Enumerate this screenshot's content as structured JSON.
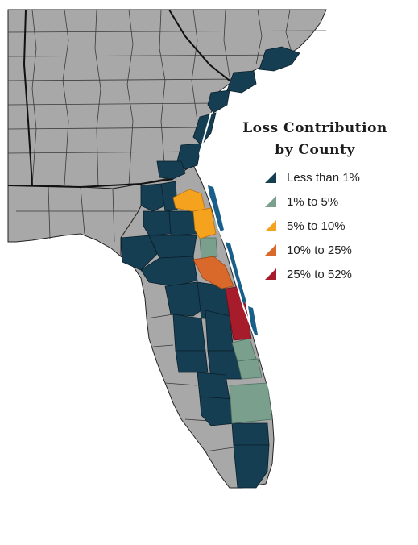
{
  "legend": {
    "title_line1": "Loss Contribution",
    "title_line2": "by County",
    "items": [
      {
        "label": "Less than 1%",
        "color": "#163e52"
      },
      {
        "label": "1% to 5%",
        "color": "#7aa08d"
      },
      {
        "label": "5% to 10%",
        "color": "#f5a21f"
      },
      {
        "label": "10% to 25%",
        "color": "#d9692a"
      },
      {
        "label": "25% to 52%",
        "color": "#a61c2b"
      }
    ]
  },
  "colors": {
    "land": "#a8a8a8",
    "county_line": "#3a3a3a",
    "state_line": "#111111",
    "water": "#ffffff"
  }
}
